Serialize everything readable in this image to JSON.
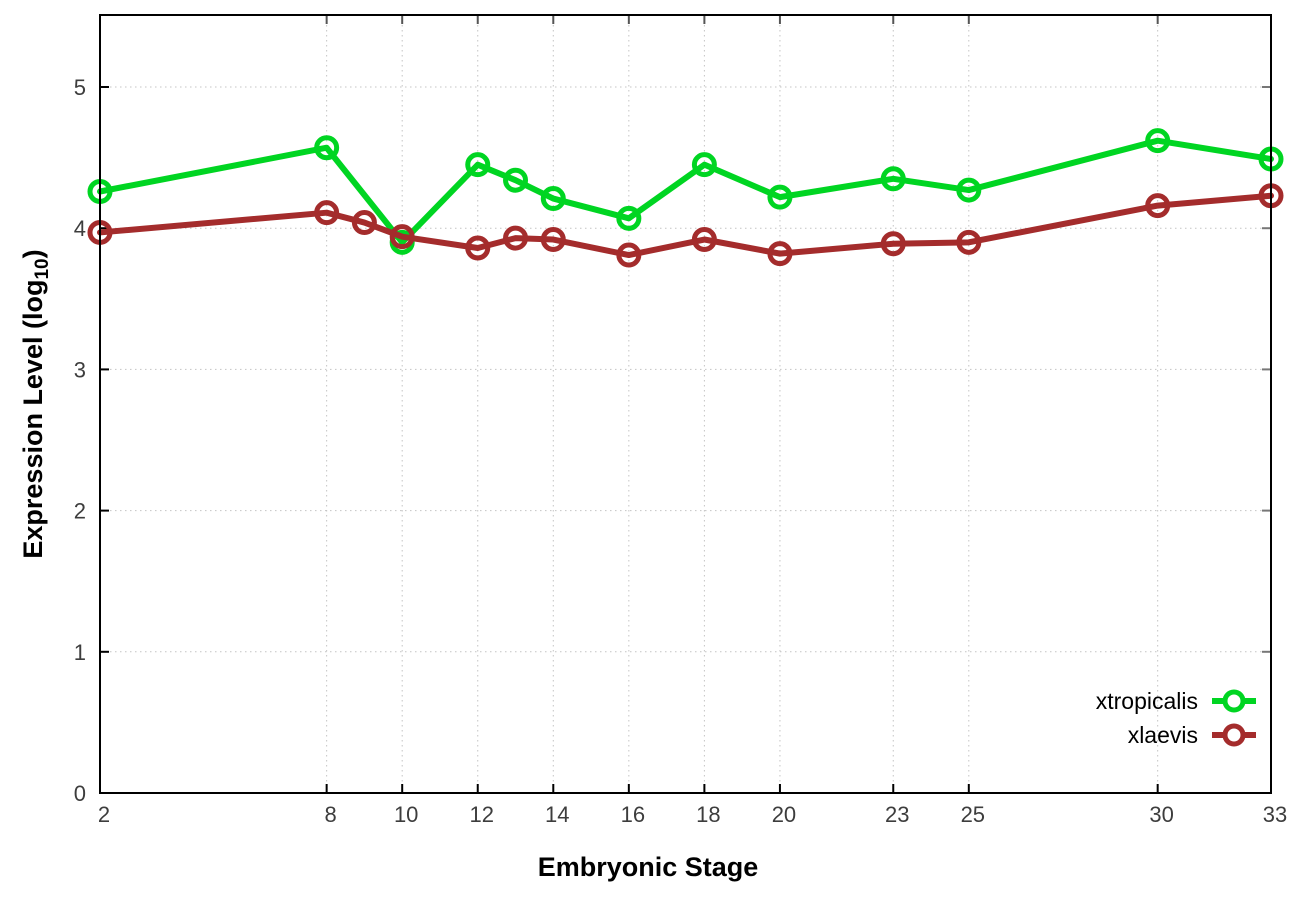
{
  "chart_data": {
    "type": "line",
    "title": "",
    "xlabel": "Embryonic Stage",
    "ylabel": {
      "pre": "Expression Level (log",
      "sub": "10",
      "post": ")"
    },
    "xlim": [
      2,
      33
    ],
    "ylim": [
      0,
      5.51
    ],
    "xticks": [
      2,
      8,
      10,
      12,
      14,
      16,
      18,
      20,
      23,
      25,
      30,
      33
    ],
    "yticks": [
      0,
      1,
      2,
      3,
      4,
      5
    ],
    "grid": "dotted",
    "grid_color": "#c4c4c4",
    "tick_label_color": "#3d3d3d",
    "border_color": "#000000",
    "legend_position": "inside-bottom-right",
    "series": [
      {
        "name": "xtropicalis",
        "color": "#00d522",
        "marker": "open-circle",
        "x": [
          2,
          8,
          10,
          12,
          13,
          14,
          16,
          18,
          20,
          23,
          25,
          30,
          33
        ],
        "values": [
          4.26,
          4.57,
          3.9,
          4.45,
          4.34,
          4.21,
          4.07,
          4.45,
          4.22,
          4.35,
          4.27,
          4.62,
          4.49
        ]
      },
      {
        "name": "xlaevis",
        "color": "#a42c2c",
        "marker": "open-circle",
        "x": [
          2,
          8,
          9,
          10,
          12,
          13,
          14,
          16,
          18,
          20,
          23,
          25,
          30,
          33
        ],
        "values": [
          3.97,
          4.11,
          4.04,
          3.94,
          3.86,
          3.93,
          3.92,
          3.81,
          3.92,
          3.82,
          3.89,
          3.9,
          4.16,
          4.23
        ]
      }
    ]
  }
}
